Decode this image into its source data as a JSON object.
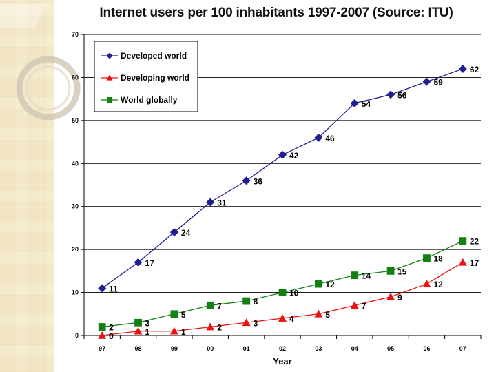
{
  "chart_data": {
    "type": "line",
    "title": "Internet users per 100 inhabitants 1997-2007 (Source: ITU)",
    "xlabel": "Year",
    "ylabel": "",
    "categories": [
      "97",
      "98",
      "99",
      "00",
      "01",
      "02",
      "03",
      "04",
      "05",
      "06",
      "07"
    ],
    "ylim": [
      0,
      70
    ],
    "yticks": [
      0,
      10,
      20,
      30,
      40,
      50,
      60,
      70
    ],
    "grid": true,
    "legend_position": "top-left",
    "series": [
      {
        "name": "Developed world",
        "color": "#1f1f8f",
        "marker": "diamond",
        "values": [
          11,
          17,
          24,
          31,
          36,
          42,
          46,
          54,
          56,
          59,
          62
        ]
      },
      {
        "name": "Developing world",
        "color": "#ee1111",
        "marker": "triangle",
        "values": [
          0,
          1,
          1,
          2,
          3,
          4,
          5,
          7,
          9,
          12,
          17
        ]
      },
      {
        "name": "World globally",
        "color": "#128012",
        "marker": "square",
        "values": [
          2,
          3,
          5,
          7,
          8,
          10,
          12,
          14,
          15,
          18,
          22
        ]
      }
    ]
  }
}
